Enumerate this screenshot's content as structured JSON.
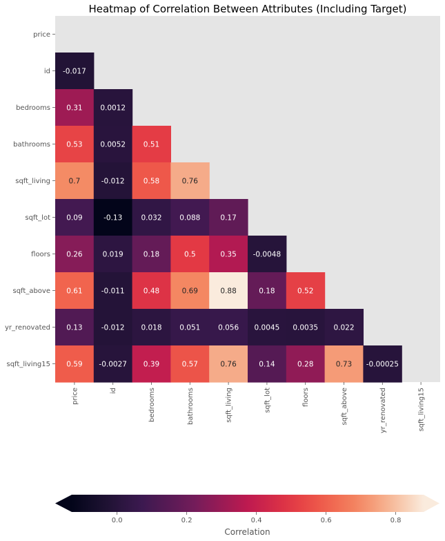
{
  "chart_data": {
    "type": "heatmap",
    "title": "Heatmap of Correlation Between Attributes (Including Target)",
    "row_labels": [
      "price",
      "id",
      "bedrooms",
      "bathrooms",
      "sqft_living",
      "sqft_lot",
      "floors",
      "sqft_above",
      "yr_renovated",
      "sqft_living15"
    ],
    "col_labels": [
      "price",
      "id",
      "bedrooms",
      "bathrooms",
      "sqft_living",
      "sqft_lot",
      "floors",
      "sqft_above",
      "yr_renovated",
      "sqft_living15"
    ],
    "mask": "upper triangle including diagonal",
    "values": [
      [],
      [
        -0.017
      ],
      [
        0.31,
        0.0012
      ],
      [
        0.53,
        0.0052,
        0.51
      ],
      [
        0.7,
        -0.012,
        0.58,
        0.76
      ],
      [
        0.09,
        -0.13,
        0.032,
        0.088,
        0.17
      ],
      [
        0.26,
        0.019,
        0.18,
        0.5,
        0.35,
        -0.0048
      ],
      [
        0.61,
        -0.011,
        0.48,
        0.69,
        0.88,
        0.18,
        0.52
      ],
      [
        0.13,
        -0.012,
        0.018,
        0.051,
        0.056,
        0.0045,
        0.0035,
        0.022
      ],
      [
        0.59,
        -0.0027,
        0.39,
        0.57,
        0.76,
        0.14,
        0.28,
        0.73,
        -0.00025
      ]
    ],
    "value_labels": [
      [],
      [
        "-0.017"
      ],
      [
        "0.31",
        "0.0012"
      ],
      [
        "0.53",
        "0.0052",
        "0.51"
      ],
      [
        "0.7",
        "-0.012",
        "0.58",
        "0.76"
      ],
      [
        "0.09",
        "-0.13",
        "0.032",
        "0.088",
        "0.17"
      ],
      [
        "0.26",
        "0.019",
        "0.18",
        "0.5",
        "0.35",
        "-0.0048"
      ],
      [
        "0.61",
        "-0.011",
        "0.48",
        "0.69",
        "0.88",
        "0.18",
        "0.52"
      ],
      [
        "0.13",
        "-0.012",
        "0.018",
        "0.051",
        "0.056",
        "0.0045",
        "0.0035",
        "0.022"
      ],
      [
        "0.59",
        "-0.0027",
        "0.39",
        "0.57",
        "0.76",
        "0.14",
        "0.28",
        "0.73",
        "-0.00025"
      ]
    ],
    "colormap": "rocket",
    "vmin": -0.13,
    "vmax": 0.88,
    "colorbar": {
      "orientation": "horizontal",
      "position": "bottom",
      "label": "Correlation",
      "ticks": [
        0.0,
        0.2,
        0.4,
        0.6,
        0.8
      ],
      "tick_labels": [
        "0.0",
        "0.2",
        "0.4",
        "0.6",
        "0.8"
      ],
      "extend": "both"
    },
    "masked_color": "#e5e5e5"
  }
}
